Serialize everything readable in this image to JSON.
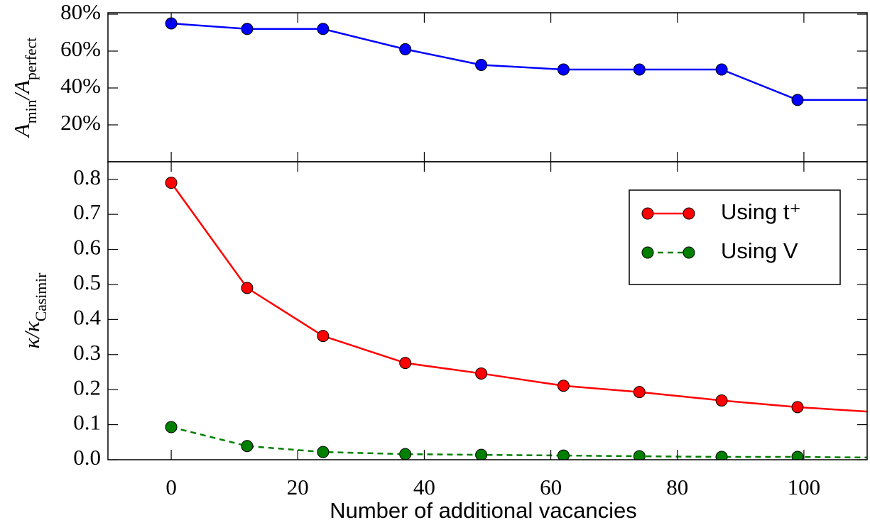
{
  "chart_data": [
    {
      "type": "line",
      "ylabel": [
        {
          "text": "A"
        },
        {
          "text": "min",
          "sub": true
        },
        {
          "text": "/A"
        },
        {
          "text": "perfect",
          "sub": true
        }
      ],
      "x": [
        0,
        12,
        24,
        37,
        49,
        62,
        74,
        87,
        99,
        112
      ],
      "series": [
        {
          "name": null,
          "color": "#0000ff",
          "dash": false,
          "values": [
            75,
            72,
            72,
            61,
            52.5,
            50,
            50,
            50,
            33.5,
            33.5
          ]
        }
      ],
      "xlim": [
        -10,
        110
      ],
      "xticks": [
        0,
        20,
        40,
        60,
        80,
        100
      ],
      "ylim": [
        0,
        80
      ],
      "yticks": [
        {
          "value": 20,
          "label": "20%"
        },
        {
          "value": 40,
          "label": "40%"
        },
        {
          "value": 60,
          "label": "60%"
        },
        {
          "value": 80,
          "label": "80%"
        }
      ]
    },
    {
      "type": "line",
      "ylabel": [
        {
          "text": "κ/κ"
        },
        {
          "text": "Casimir",
          "sub": true
        }
      ],
      "xlabel": "Number of additional vacancies",
      "x": [
        0,
        12,
        24,
        37,
        49,
        62,
        74,
        87,
        99,
        112
      ],
      "series": [
        {
          "name": "Using t⁺",
          "color": "#ff0000",
          "dash": false,
          "values": [
            0.79,
            0.49,
            0.353,
            0.276,
            0.246,
            0.211,
            0.193,
            0.169,
            0.15,
            0.135
          ]
        },
        {
          "name": "Using V",
          "color": "#007f00",
          "dash": true,
          "values": [
            0.093,
            0.039,
            0.022,
            0.016,
            0.014,
            0.012,
            0.01,
            0.008,
            0.008,
            0.006
          ]
        }
      ],
      "xlim": [
        -10,
        110
      ],
      "xticks": [
        0,
        20,
        40,
        60,
        80,
        100
      ],
      "ylim": [
        0,
        0.85
      ],
      "yticks": [
        {
          "value": 0,
          "label": "0.0"
        },
        0.1,
        0.2,
        0.3,
        0.4,
        0.5,
        0.6,
        0.7,
        0.8
      ],
      "legend": "upper right"
    }
  ]
}
